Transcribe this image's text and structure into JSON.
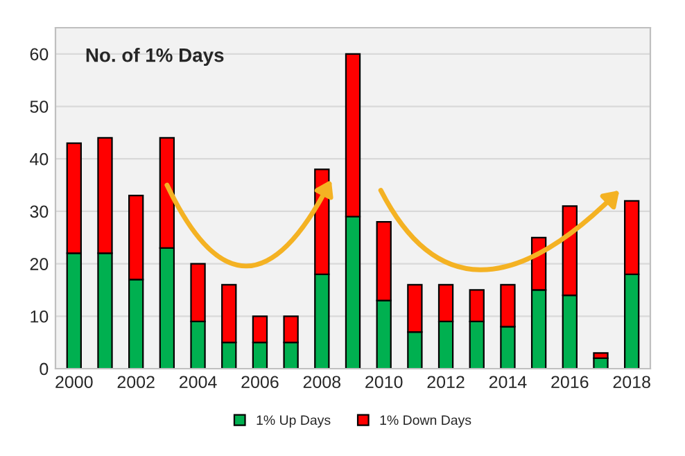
{
  "chart_data": {
    "type": "bar",
    "title": "No. of 1% Days",
    "stacked": true,
    "categories": [
      "2000",
      null,
      "2002",
      null,
      "2004",
      null,
      "2006",
      null,
      "2008",
      null,
      "2010",
      null,
      "2012",
      null,
      "2014",
      null,
      "2016",
      null,
      "2018"
    ],
    "series": [
      {
        "name": "1% Up Days",
        "color": "#00b050",
        "values": [
          22,
          22,
          17,
          23,
          9,
          5,
          5,
          5,
          18,
          29,
          13,
          7,
          9,
          9,
          8,
          15,
          14,
          2,
          18
        ]
      },
      {
        "name": "1% Down Days",
        "color": "#ff0000",
        "values": [
          21,
          22,
          16,
          21,
          11,
          11,
          5,
          5,
          20,
          31,
          15,
          9,
          7,
          6,
          8,
          10,
          17,
          1,
          14
        ]
      }
    ],
    "ylim": [
      0,
      65
    ],
    "yticks": [
      0,
      10,
      20,
      30,
      40,
      50,
      60
    ],
    "grid": "y",
    "legend": "bottom"
  }
}
